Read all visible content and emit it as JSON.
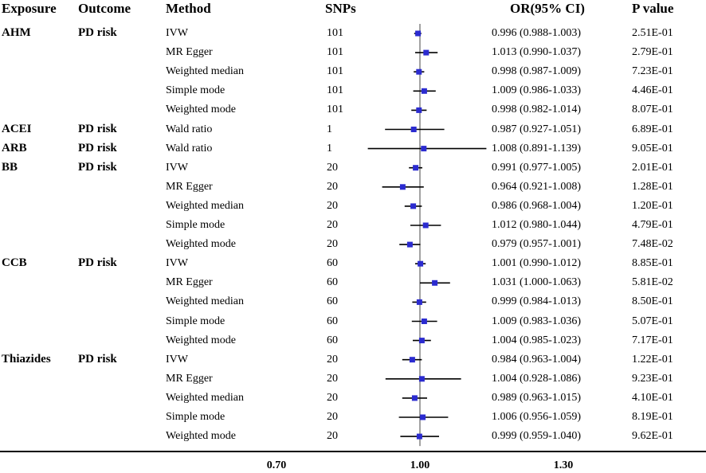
{
  "headers": {
    "exposure": "Exposure",
    "outcome": "Outcome",
    "method": "Method",
    "snps": "SNPs",
    "or_ci": "OR(95% CI)",
    "pvalue": "P value"
  },
  "groups": [
    {
      "exposure": "AHM",
      "outcome": "PD risk",
      "start_row": 0
    },
    {
      "exposure": "ACEI",
      "outcome": "PD risk",
      "start_row": 5
    },
    {
      "exposure": "ARB",
      "outcome": "PD risk",
      "start_row": 6
    },
    {
      "exposure": "BB",
      "outcome": "PD risk",
      "start_row": 7
    },
    {
      "exposure": "CCB",
      "outcome": "PD risk",
      "start_row": 12
    },
    {
      "exposure": "Thiazides",
      "outcome": "PD risk",
      "start_row": 17
    }
  ],
  "rows": [
    {
      "method": "IVW",
      "snps": "101",
      "or_ci": "0.996 (0.988-1.003)",
      "pvalue": "2.51E-01"
    },
    {
      "method": "MR Egger",
      "snps": "101",
      "or_ci": "1.013 (0.990-1.037)",
      "pvalue": "2.79E-01"
    },
    {
      "method": "Weighted median",
      "snps": "101",
      "or_ci": "0.998 (0.987-1.009)",
      "pvalue": "7.23E-01"
    },
    {
      "method": "Simple mode",
      "snps": "101",
      "or_ci": "1.009 (0.986-1.033)",
      "pvalue": "4.46E-01"
    },
    {
      "method": "Weighted mode",
      "snps": "101",
      "or_ci": "0.998 (0.982-1.014)",
      "pvalue": "8.07E-01"
    },
    {
      "method": "Wald ratio",
      "snps": "1",
      "or_ci": "0.987 (0.927-1.051)",
      "pvalue": "6.89E-01"
    },
    {
      "method": "Wald ratio",
      "snps": "1",
      "or_ci": "1.008 (0.891-1.139)",
      "pvalue": "9.05E-01"
    },
    {
      "method": "IVW",
      "snps": "20",
      "or_ci": "0.991 (0.977-1.005)",
      "pvalue": "2.01E-01"
    },
    {
      "method": "MR Egger",
      "snps": "20",
      "or_ci": "0.964 (0.921-1.008)",
      "pvalue": "1.28E-01"
    },
    {
      "method": "Weighted median",
      "snps": "20",
      "or_ci": "0.986 (0.968-1.004)",
      "pvalue": "1.20E-01"
    },
    {
      "method": "Simple mode",
      "snps": "20",
      "or_ci": "1.012 (0.980-1.044)",
      "pvalue": "4.79E-01"
    },
    {
      "method": "Weighted mode",
      "snps": "20",
      "or_ci": "0.979 (0.957-1.001)",
      "pvalue": "7.48E-02"
    },
    {
      "method": "IVW",
      "snps": "60",
      "or_ci": "1.001 (0.990-1.012)",
      "pvalue": "8.85E-01"
    },
    {
      "method": "MR Egger",
      "snps": "60",
      "or_ci": "1.031 (1.000-1.063)",
      "pvalue": "5.81E-02"
    },
    {
      "method": "Weighted median",
      "snps": "60",
      "or_ci": "0.999 (0.984-1.013)",
      "pvalue": "8.50E-01"
    },
    {
      "method": "Simple mode",
      "snps": "60",
      "or_ci": "1.009 (0.983-1.036)",
      "pvalue": "5.07E-01"
    },
    {
      "method": "Weighted mode",
      "snps": "60",
      "or_ci": "1.004 (0.985-1.023)",
      "pvalue": "7.17E-01"
    },
    {
      "method": "IVW",
      "snps": "20",
      "or_ci": "0.984 (0.963-1.004)",
      "pvalue": "1.22E-01"
    },
    {
      "method": "MR Egger",
      "snps": "20",
      "or_ci": "1.004 (0.928-1.086)",
      "pvalue": "9.23E-01"
    },
    {
      "method": "Weighted median",
      "snps": "20",
      "or_ci": "0.989 (0.963-1.015)",
      "pvalue": "4.10E-01"
    },
    {
      "method": "Simple mode",
      "snps": "20",
      "or_ci": "1.006 (0.956-1.059)",
      "pvalue": "8.19E-01"
    },
    {
      "method": "Weighted mode",
      "snps": "20",
      "or_ci": "0.999 (0.959-1.040)",
      "pvalue": "9.62E-01"
    }
  ],
  "chart_data": {
    "type": "scatter",
    "subtype": "forest",
    "title": "",
    "xlabel": "",
    "ylabel": "",
    "xlim": [
      0.7,
      1.3
    ],
    "reference_line": 1.0,
    "x_ticks": [
      0.7,
      1.0,
      1.3
    ],
    "x_tick_labels": [
      "0.70",
      "1.00",
      "1.30"
    ],
    "point_color": "#2b2bd0",
    "line_color": "#000000",
    "series": [
      {
        "name": "AHM",
        "estimates": [
          0.996,
          1.013,
          0.998,
          1.009,
          0.998
        ],
        "lower": [
          0.988,
          0.99,
          0.987,
          0.986,
          0.982
        ],
        "upper": [
          1.003,
          1.037,
          1.009,
          1.033,
          1.014
        ]
      },
      {
        "name": "ACEI",
        "estimates": [
          0.987
        ],
        "lower": [
          0.927
        ],
        "upper": [
          1.051
        ]
      },
      {
        "name": "ARB",
        "estimates": [
          1.008
        ],
        "lower": [
          0.891
        ],
        "upper": [
          1.139
        ]
      },
      {
        "name": "BB",
        "estimates": [
          0.991,
          0.964,
          0.986,
          1.012,
          0.979
        ],
        "lower": [
          0.977,
          0.921,
          0.968,
          0.98,
          0.957
        ],
        "upper": [
          1.005,
          1.008,
          1.004,
          1.044,
          1.001
        ]
      },
      {
        "name": "CCB",
        "estimates": [
          1.001,
          1.031,
          0.999,
          1.009,
          1.004
        ],
        "lower": [
          0.99,
          1.0,
          0.984,
          0.983,
          0.985
        ],
        "upper": [
          1.012,
          1.063,
          1.013,
          1.036,
          1.023
        ]
      },
      {
        "name": "Thiazides",
        "estimates": [
          0.984,
          1.004,
          0.989,
          1.006,
          0.999
        ],
        "lower": [
          0.963,
          0.928,
          0.963,
          0.956,
          0.959
        ],
        "upper": [
          1.004,
          1.086,
          1.015,
          1.059,
          1.04
        ]
      }
    ]
  }
}
